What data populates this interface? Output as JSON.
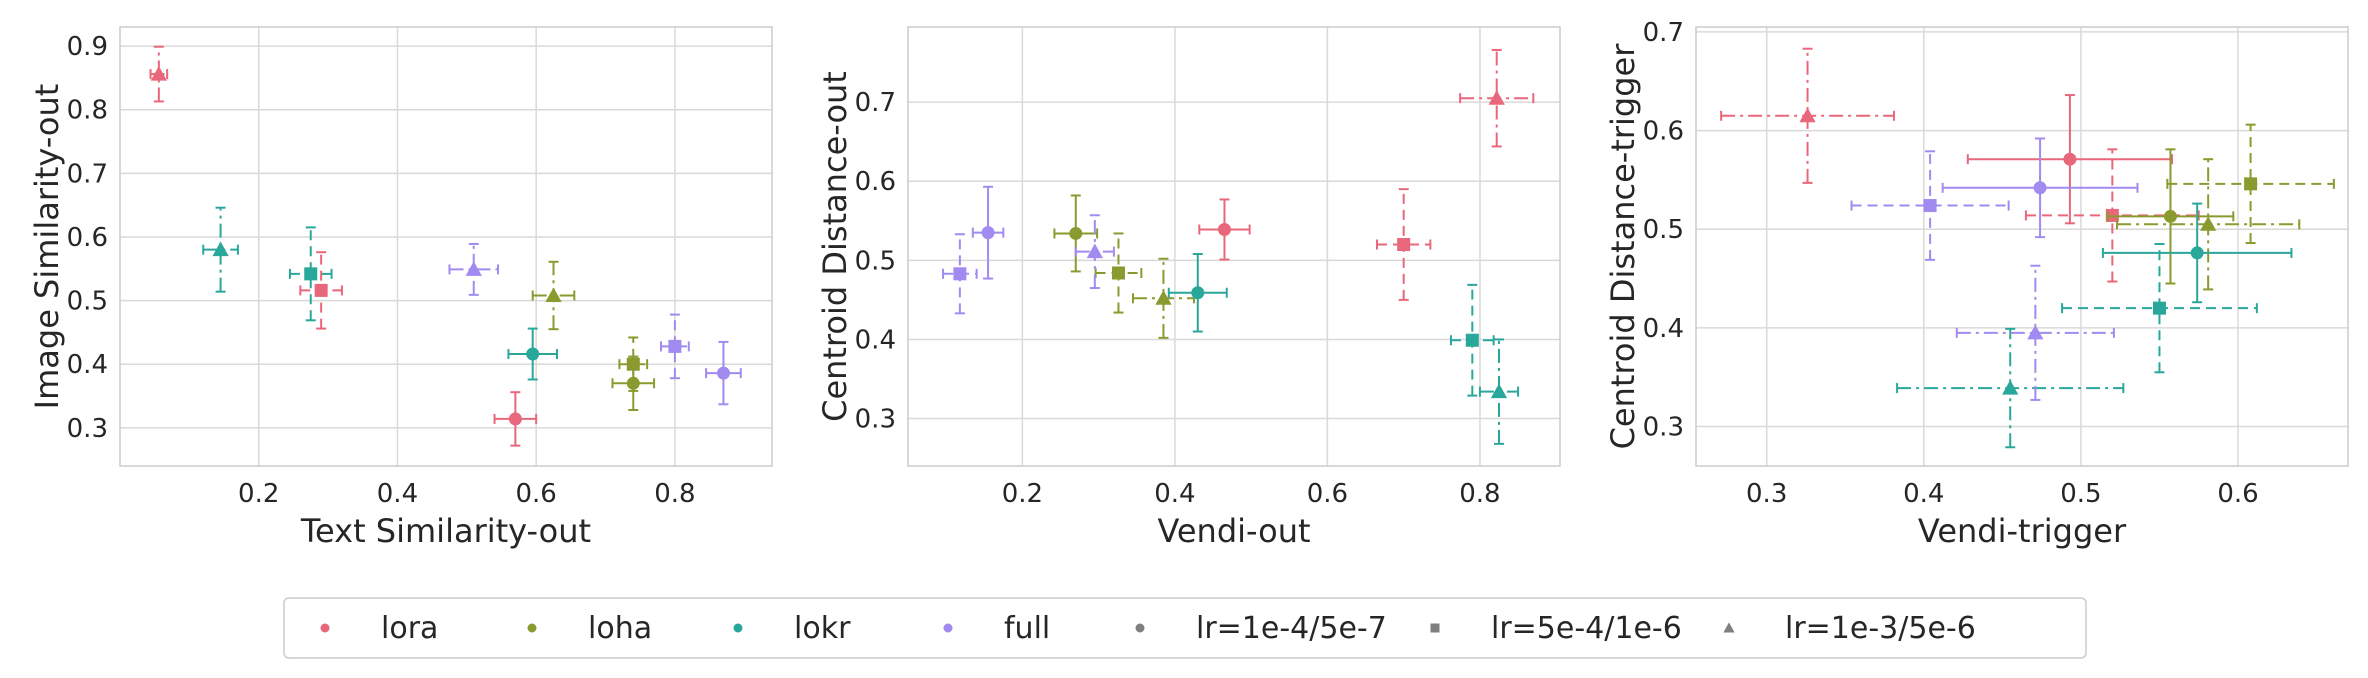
{
  "colors": {
    "lora": "#e8677a",
    "loha": "#8a9a2e",
    "lokr": "#2aa79b",
    "full": "#a18af0",
    "lr_marker": "#7f7f7f",
    "grid": "#d9d9d9",
    "frame": "#cccccc"
  },
  "legend": {
    "placement": "bottom-center",
    "entries": [
      {
        "label": "lora",
        "kind": "method",
        "key": "lora"
      },
      {
        "label": "loha",
        "kind": "method",
        "key": "loha"
      },
      {
        "label": "lokr",
        "kind": "method",
        "key": "lokr"
      },
      {
        "label": "full",
        "kind": "method",
        "key": "full"
      },
      {
        "label": "lr=1e-4/5e-7",
        "kind": "lr",
        "marker": "circle"
      },
      {
        "label": "lr=5e-4/1e-6",
        "kind": "lr",
        "marker": "square"
      },
      {
        "label": "lr=1e-3/5e-6",
        "kind": "lr",
        "marker": "triangle"
      }
    ]
  },
  "chart_data": [
    {
      "type": "scatter",
      "xlabel": "Text Similarity-out",
      "ylabel": "Image Similarity-out",
      "xlim": [
        0.0,
        0.94
      ],
      "ylim": [
        0.24,
        0.93
      ],
      "xticks": [
        {
          "v": 0.2,
          "label": "0.2"
        },
        {
          "v": 0.4,
          "label": "0.4"
        },
        {
          "v": 0.6,
          "label": "0.6"
        },
        {
          "v": 0.8,
          "label": "0.8"
        }
      ],
      "yticks": [
        {
          "v": 0.3,
          "label": "0.3"
        },
        {
          "v": 0.4,
          "label": "0.4"
        },
        {
          "v": 0.5,
          "label": "0.5"
        },
        {
          "v": 0.6,
          "label": "0.6"
        },
        {
          "v": 0.7,
          "label": "0.7"
        },
        {
          "v": 0.8,
          "label": "0.8"
        },
        {
          "v": 0.9,
          "label": "0.9"
        }
      ],
      "grid": true,
      "points": [
        {
          "method": "lora",
          "lr": "circle",
          "x": 0.57,
          "y": 0.314,
          "xerr": 0.03,
          "yerr": 0.042
        },
        {
          "method": "lora",
          "lr": "square",
          "x": 0.29,
          "y": 0.516,
          "xerr": 0.03,
          "yerr": 0.06
        },
        {
          "method": "lora",
          "lr": "triangle",
          "x": 0.056,
          "y": 0.856,
          "xerr": 0.012,
          "yerr": 0.043
        },
        {
          "method": "loha",
          "lr": "circle",
          "x": 0.74,
          "y": 0.37,
          "xerr": 0.03,
          "yerr": 0.042
        },
        {
          "method": "loha",
          "lr": "square",
          "x": 0.74,
          "y": 0.4,
          "xerr": 0.02,
          "yerr": 0.042
        },
        {
          "method": "loha",
          "lr": "triangle",
          "x": 0.625,
          "y": 0.508,
          "xerr": 0.03,
          "yerr": 0.053
        },
        {
          "method": "lokr",
          "lr": "circle",
          "x": 0.595,
          "y": 0.416,
          "xerr": 0.035,
          "yerr": 0.04
        },
        {
          "method": "lokr",
          "lr": "square",
          "x": 0.275,
          "y": 0.542,
          "xerr": 0.03,
          "yerr": 0.073
        },
        {
          "method": "lokr",
          "lr": "triangle",
          "x": 0.145,
          "y": 0.58,
          "xerr": 0.025,
          "yerr": 0.066
        },
        {
          "method": "full",
          "lr": "circle",
          "x": 0.87,
          "y": 0.386,
          "xerr": 0.025,
          "yerr": 0.049
        },
        {
          "method": "full",
          "lr": "square",
          "x": 0.8,
          "y": 0.428,
          "xerr": 0.02,
          "yerr": 0.05
        },
        {
          "method": "full",
          "lr": "triangle",
          "x": 0.51,
          "y": 0.549,
          "xerr": 0.035,
          "yerr": 0.04
        }
      ]
    },
    {
      "type": "scatter",
      "xlabel": "Vendi-out",
      "ylabel": "Centroid Distance-out",
      "xlim": [
        0.05,
        0.905
      ],
      "ylim": [
        0.24,
        0.795
      ],
      "xticks": [
        {
          "v": 0.2,
          "label": "0.2"
        },
        {
          "v": 0.4,
          "label": "0.4"
        },
        {
          "v": 0.6,
          "label": "0.6"
        },
        {
          "v": 0.8,
          "label": "0.8"
        }
      ],
      "yticks": [
        {
          "v": 0.3,
          "label": "0.3"
        },
        {
          "v": 0.4,
          "label": "0.4"
        },
        {
          "v": 0.5,
          "label": "0.5"
        },
        {
          "v": 0.6,
          "label": "0.6"
        },
        {
          "v": 0.7,
          "label": "0.7"
        }
      ],
      "grid": true,
      "points": [
        {
          "method": "lora",
          "lr": "circle",
          "x": 0.465,
          "y": 0.539,
          "xerr": 0.033,
          "yerr": 0.038
        },
        {
          "method": "lora",
          "lr": "square",
          "x": 0.7,
          "y": 0.52,
          "xerr": 0.035,
          "yerr": 0.07
        },
        {
          "method": "lora",
          "lr": "triangle",
          "x": 0.822,
          "y": 0.705,
          "xerr": 0.048,
          "yerr": 0.061
        },
        {
          "method": "loha",
          "lr": "circle",
          "x": 0.27,
          "y": 0.534,
          "xerr": 0.028,
          "yerr": 0.048
        },
        {
          "method": "loha",
          "lr": "square",
          "x": 0.326,
          "y": 0.484,
          "xerr": 0.03,
          "yerr": 0.05
        },
        {
          "method": "loha",
          "lr": "triangle",
          "x": 0.385,
          "y": 0.452,
          "xerr": 0.04,
          "yerr": 0.05
        },
        {
          "method": "lokr",
          "lr": "circle",
          "x": 0.43,
          "y": 0.459,
          "xerr": 0.038,
          "yerr": 0.049
        },
        {
          "method": "lokr",
          "lr": "square",
          "x": 0.79,
          "y": 0.399,
          "xerr": 0.028,
          "yerr": 0.07
        },
        {
          "method": "lokr",
          "lr": "triangle",
          "x": 0.825,
          "y": 0.334,
          "xerr": 0.025,
          "yerr": 0.066
        },
        {
          "method": "full",
          "lr": "circle",
          "x": 0.155,
          "y": 0.535,
          "xerr": 0.02,
          "yerr": 0.058
        },
        {
          "method": "full",
          "lr": "square",
          "x": 0.118,
          "y": 0.483,
          "xerr": 0.022,
          "yerr": 0.05
        },
        {
          "method": "full",
          "lr": "triangle",
          "x": 0.295,
          "y": 0.511,
          "xerr": 0.025,
          "yerr": 0.046
        }
      ]
    },
    {
      "type": "scatter",
      "xlabel": "Vendi-trigger",
      "ylabel": "Centroid Distance-trigger",
      "xlim": [
        0.255,
        0.67
      ],
      "ylim": [
        0.26,
        0.705
      ],
      "xticks": [
        {
          "v": 0.3,
          "label": "0.3"
        },
        {
          "v": 0.4,
          "label": "0.4"
        },
        {
          "v": 0.5,
          "label": "0.5"
        },
        {
          "v": 0.6,
          "label": "0.6"
        }
      ],
      "yticks": [
        {
          "v": 0.3,
          "label": "0.3"
        },
        {
          "v": 0.4,
          "label": "0.4"
        },
        {
          "v": 0.5,
          "label": "0.5"
        },
        {
          "v": 0.6,
          "label": "0.6"
        },
        {
          "v": 0.7,
          "label": "0.7"
        }
      ],
      "grid": true,
      "points": [
        {
          "method": "lora",
          "lr": "circle",
          "x": 0.493,
          "y": 0.571,
          "xerr": 0.065,
          "yerr": 0.065
        },
        {
          "method": "lora",
          "lr": "square",
          "x": 0.52,
          "y": 0.514,
          "xerr": 0.055,
          "yerr": 0.067
        },
        {
          "method": "lora",
          "lr": "triangle",
          "x": 0.326,
          "y": 0.615,
          "xerr": 0.055,
          "yerr": 0.068
        },
        {
          "method": "loha",
          "lr": "circle",
          "x": 0.557,
          "y": 0.513,
          "xerr": 0.04,
          "yerr": 0.068
        },
        {
          "method": "loha",
          "lr": "square",
          "x": 0.608,
          "y": 0.546,
          "xerr": 0.053,
          "yerr": 0.06
        },
        {
          "method": "loha",
          "lr": "triangle",
          "x": 0.581,
          "y": 0.505,
          "xerr": 0.058,
          "yerr": 0.066
        },
        {
          "method": "lokr",
          "lr": "circle",
          "x": 0.574,
          "y": 0.476,
          "xerr": 0.06,
          "yerr": 0.05
        },
        {
          "method": "lokr",
          "lr": "square",
          "x": 0.55,
          "y": 0.42,
          "xerr": 0.062,
          "yerr": 0.065
        },
        {
          "method": "lokr",
          "lr": "triangle",
          "x": 0.455,
          "y": 0.339,
          "xerr": 0.072,
          "yerr": 0.06
        },
        {
          "method": "full",
          "lr": "circle",
          "x": 0.474,
          "y": 0.542,
          "xerr": 0.062,
          "yerr": 0.05
        },
        {
          "method": "full",
          "lr": "square",
          "x": 0.404,
          "y": 0.524,
          "xerr": 0.05,
          "yerr": 0.055
        },
        {
          "method": "full",
          "lr": "triangle",
          "x": 0.471,
          "y": 0.395,
          "xerr": 0.05,
          "yerr": 0.068
        }
      ]
    }
  ]
}
